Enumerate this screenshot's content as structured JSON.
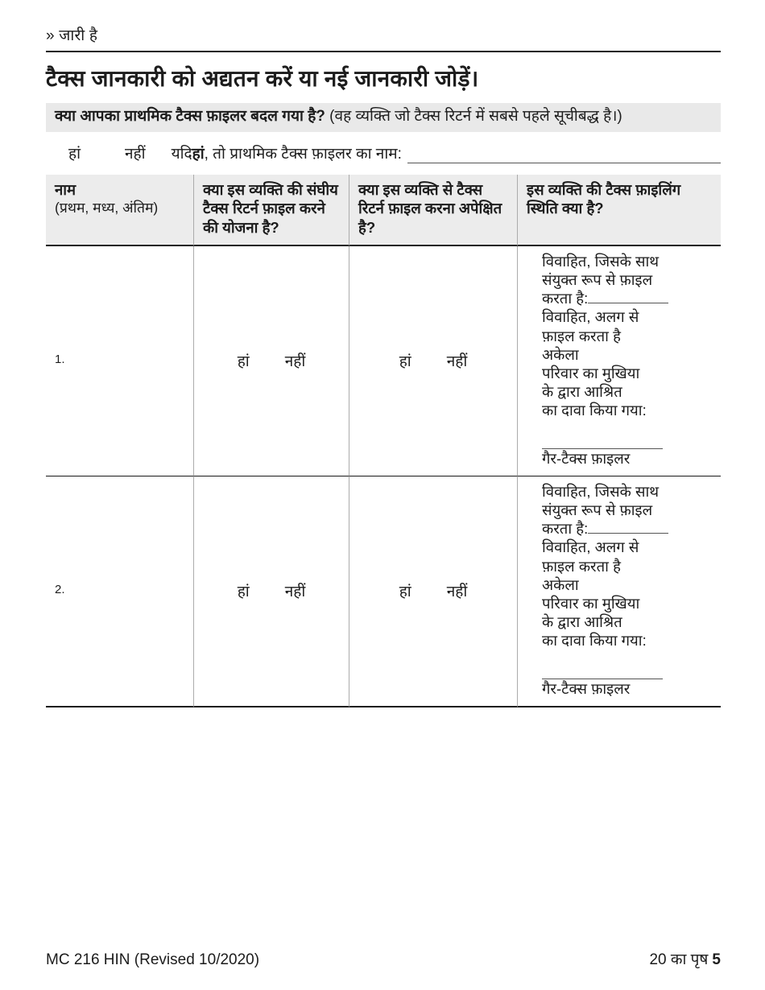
{
  "header": {
    "continued": "» जारी है",
    "title": "टैक्स जानकारी को अद्यतन करें या नई जानकारी जोड़ें।"
  },
  "question": {
    "bold": "क्या आपका प्राथमिक टैक्स फ़ाइलर बदल गया है?",
    "note": " (वह व्यक्ति जो टैक्स रिटर्न में सबसे पहले सूचीबद्ध है।)",
    "yes": "हां",
    "no": "नहीं",
    "if_prefix": "यदि ",
    "if_bold": "हां",
    "if_suffix": ", तो प्राथमिक टैक्स फ़ाइलर का नाम:"
  },
  "table": {
    "columns": [
      {
        "title": "नाम",
        "subtitle": "(प्रथम, मध्य, अंतिम)"
      },
      {
        "title": "क्या इस व्यक्ति की संघीय टैक्स रिटर्न फ़ाइल करने की योजना है?"
      },
      {
        "title": "क्या इस व्यक्ति से टैक्स रिटर्न फ़ाइल करना अपेक्षित है?"
      },
      {
        "title": "इस व्यक्ति की टैक्स फ़ाइलिंग स्थिति क्या है?"
      }
    ],
    "yes": "हां",
    "no": "नहीं",
    "rows": [
      {
        "number": "1."
      },
      {
        "number": "2."
      }
    ],
    "status": {
      "married_joint_line1": "विवाहित, जिसके साथ",
      "married_joint_line2": "संयुक्त रूप से फ़ाइल",
      "married_joint_line3": "करता है:",
      "married_separate_line1": "विवाहित, अलग से",
      "married_separate_line2": "फ़ाइल करता है",
      "single": "अकेला",
      "head_of_household": "परिवार का मुखिया",
      "dependent_line1": "के द्वारा आश्रित",
      "dependent_line2": "का दावा किया गया:",
      "non_filer": "गैर-टैक्स फ़ाइलर"
    }
  },
  "footer": {
    "form_number": "MC 216 HIN (Revised 10/2020)",
    "page_label": "20 का पृष",
    "page_number": "5"
  },
  "colors": {
    "question_bar_bg": "#e9e9e9",
    "table_header_bg": "#ececec",
    "border_dark": "#1a1a1a",
    "border_light": "#ababab"
  }
}
